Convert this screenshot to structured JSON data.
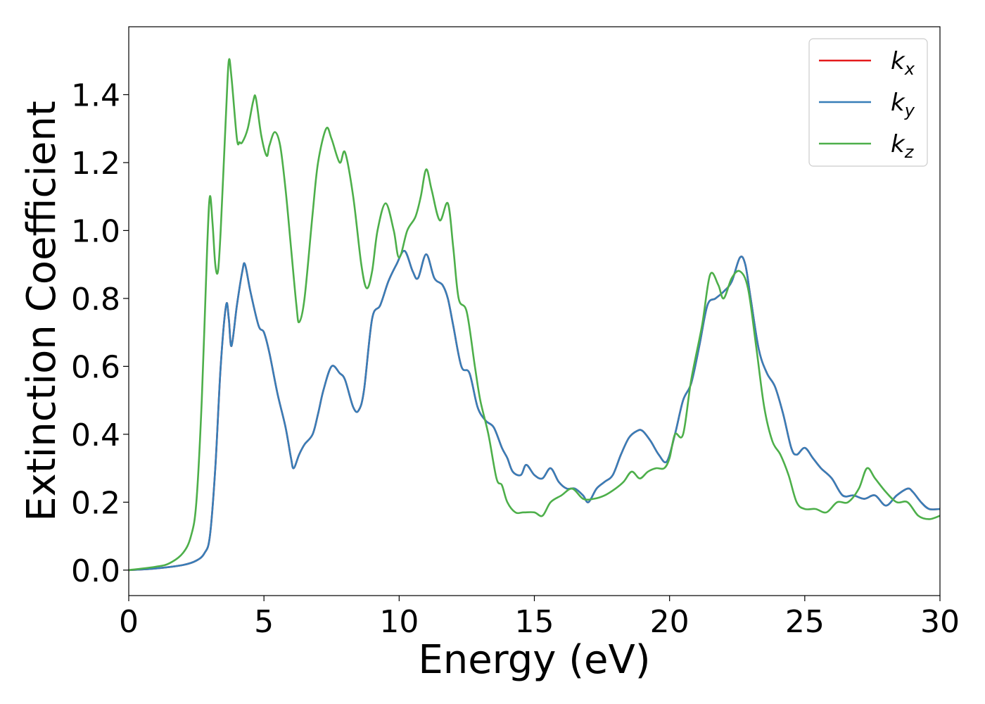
{
  "chart_data": {
    "type": "line",
    "title": "",
    "xlabel": "Energy (eV)",
    "ylabel": "Extinction Coefficient",
    "xlim": [
      0,
      30
    ],
    "ylim": [
      -0.075,
      1.6
    ],
    "xticks": [
      0,
      5,
      10,
      15,
      20,
      25,
      30
    ],
    "yticks": [
      0.0,
      0.2,
      0.4,
      0.6,
      0.8,
      1.0,
      1.2,
      1.4
    ],
    "ytick_labels": [
      "0.0",
      "0.2",
      "0.4",
      "0.6",
      "0.8",
      "1.0",
      "1.2",
      "1.4"
    ],
    "grid": false,
    "legend": {
      "placement": "top-right",
      "entries": [
        {
          "base": "k",
          "sub": "x",
          "color": "#e41a1c"
        },
        {
          "base": "k",
          "sub": "y",
          "color": "#377eb8"
        },
        {
          "base": "k",
          "sub": "z",
          "color": "#4daf4a"
        }
      ]
    },
    "series": [
      {
        "name": "kx",
        "color": "#e41a1c",
        "hidden_under": "ky",
        "x": [
          0,
          1,
          2,
          2.5,
          2.8,
          3.0,
          3.2,
          3.4,
          3.6,
          3.7,
          3.8,
          4.0,
          4.2,
          4.3,
          4.5,
          4.8,
          5.0,
          5.2,
          5.5,
          5.8,
          6.0,
          6.1,
          6.3,
          6.5,
          6.8,
          7.0,
          7.2,
          7.5,
          7.8,
          8.0,
          8.3,
          8.5,
          8.7,
          9.0,
          9.3,
          9.6,
          9.9,
          10.2,
          10.5,
          10.7,
          11.0,
          11.3,
          11.6,
          11.8,
          12.0,
          12.3,
          12.6,
          12.9,
          13.2,
          13.5,
          13.8,
          14.0,
          14.2,
          14.5,
          14.7,
          15.0,
          15.3,
          15.6,
          15.9,
          16.2,
          16.5,
          16.8,
          17.0,
          17.3,
          17.6,
          17.9,
          18.2,
          18.5,
          18.8,
          19.0,
          19.3,
          19.6,
          19.9,
          20.2,
          20.5,
          20.8,
          21.1,
          21.4,
          21.7,
          22.0,
          22.3,
          22.6,
          22.8,
          23.0,
          23.3,
          23.6,
          23.9,
          24.2,
          24.5,
          24.7,
          25.0,
          25.3,
          25.6,
          26.0,
          26.4,
          26.8,
          27.2,
          27.6,
          28.0,
          28.4,
          28.8,
          29.0,
          29.3,
          29.6,
          30.0
        ],
        "y": [
          0,
          0.005,
          0.015,
          0.028,
          0.05,
          0.1,
          0.3,
          0.6,
          0.78,
          0.74,
          0.66,
          0.78,
          0.88,
          0.9,
          0.82,
          0.72,
          0.7,
          0.64,
          0.52,
          0.42,
          0.33,
          0.3,
          0.34,
          0.37,
          0.4,
          0.46,
          0.53,
          0.6,
          0.58,
          0.56,
          0.48,
          0.47,
          0.53,
          0.74,
          0.78,
          0.85,
          0.9,
          0.94,
          0.88,
          0.86,
          0.93,
          0.86,
          0.84,
          0.8,
          0.72,
          0.6,
          0.58,
          0.48,
          0.44,
          0.42,
          0.36,
          0.33,
          0.29,
          0.28,
          0.31,
          0.28,
          0.27,
          0.3,
          0.26,
          0.24,
          0.24,
          0.22,
          0.2,
          0.24,
          0.26,
          0.28,
          0.34,
          0.39,
          0.41,
          0.41,
          0.38,
          0.34,
          0.32,
          0.4,
          0.5,
          0.55,
          0.66,
          0.78,
          0.8,
          0.82,
          0.85,
          0.92,
          0.9,
          0.8,
          0.65,
          0.58,
          0.54,
          0.46,
          0.36,
          0.34,
          0.36,
          0.33,
          0.3,
          0.27,
          0.22,
          0.22,
          0.21,
          0.22,
          0.19,
          0.22,
          0.24,
          0.23,
          0.2,
          0.18,
          0.18
        ]
      },
      {
        "name": "ky",
        "color": "#377eb8",
        "x": [
          0,
          1,
          2,
          2.5,
          2.8,
          3.0,
          3.2,
          3.4,
          3.6,
          3.7,
          3.8,
          4.0,
          4.2,
          4.3,
          4.5,
          4.8,
          5.0,
          5.2,
          5.5,
          5.8,
          6.0,
          6.1,
          6.3,
          6.5,
          6.8,
          7.0,
          7.2,
          7.5,
          7.8,
          8.0,
          8.3,
          8.5,
          8.7,
          9.0,
          9.3,
          9.6,
          9.9,
          10.2,
          10.5,
          10.7,
          11.0,
          11.3,
          11.6,
          11.8,
          12.0,
          12.3,
          12.6,
          12.9,
          13.2,
          13.5,
          13.8,
          14.0,
          14.2,
          14.5,
          14.7,
          15.0,
          15.3,
          15.6,
          15.9,
          16.2,
          16.5,
          16.8,
          17.0,
          17.3,
          17.6,
          17.9,
          18.2,
          18.5,
          18.8,
          19.0,
          19.3,
          19.6,
          19.9,
          20.2,
          20.5,
          20.8,
          21.1,
          21.4,
          21.7,
          22.0,
          22.3,
          22.6,
          22.8,
          23.0,
          23.3,
          23.6,
          23.9,
          24.2,
          24.5,
          24.7,
          25.0,
          25.3,
          25.6,
          26.0,
          26.4,
          26.8,
          27.2,
          27.6,
          28.0,
          28.4,
          28.8,
          29.0,
          29.3,
          29.6,
          30.0
        ],
        "y": [
          0,
          0.005,
          0.015,
          0.028,
          0.05,
          0.1,
          0.3,
          0.6,
          0.78,
          0.74,
          0.66,
          0.78,
          0.88,
          0.9,
          0.82,
          0.72,
          0.7,
          0.64,
          0.52,
          0.42,
          0.33,
          0.3,
          0.34,
          0.37,
          0.4,
          0.46,
          0.53,
          0.6,
          0.58,
          0.56,
          0.48,
          0.47,
          0.53,
          0.74,
          0.78,
          0.85,
          0.9,
          0.94,
          0.88,
          0.86,
          0.93,
          0.86,
          0.84,
          0.8,
          0.72,
          0.6,
          0.58,
          0.48,
          0.44,
          0.42,
          0.36,
          0.33,
          0.29,
          0.28,
          0.31,
          0.28,
          0.27,
          0.3,
          0.26,
          0.24,
          0.24,
          0.22,
          0.2,
          0.24,
          0.26,
          0.28,
          0.34,
          0.39,
          0.41,
          0.41,
          0.38,
          0.34,
          0.32,
          0.4,
          0.5,
          0.55,
          0.66,
          0.78,
          0.8,
          0.82,
          0.85,
          0.92,
          0.9,
          0.8,
          0.65,
          0.58,
          0.54,
          0.46,
          0.36,
          0.34,
          0.36,
          0.33,
          0.3,
          0.27,
          0.22,
          0.22,
          0.21,
          0.22,
          0.19,
          0.22,
          0.24,
          0.23,
          0.2,
          0.18,
          0.18
        ]
      },
      {
        "name": "kz",
        "color": "#4daf4a",
        "x": [
          0,
          1,
          1.5,
          2.0,
          2.3,
          2.5,
          2.7,
          2.9,
          3.0,
          3.1,
          3.2,
          3.3,
          3.4,
          3.6,
          3.7,
          3.8,
          4.0,
          4.1,
          4.2,
          4.4,
          4.6,
          4.7,
          4.9,
          5.1,
          5.2,
          5.4,
          5.6,
          5.8,
          6.0,
          6.2,
          6.3,
          6.5,
          6.8,
          7.0,
          7.3,
          7.5,
          7.8,
          8.0,
          8.3,
          8.6,
          8.8,
          9.0,
          9.2,
          9.5,
          9.8,
          10.0,
          10.3,
          10.6,
          10.8,
          11.0,
          11.2,
          11.5,
          11.8,
          12.0,
          12.2,
          12.5,
          12.8,
          13.0,
          13.3,
          13.6,
          13.8,
          14.0,
          14.3,
          14.6,
          15.0,
          15.3,
          15.6,
          16.0,
          16.4,
          16.8,
          17.2,
          17.6,
          18.0,
          18.3,
          18.6,
          18.9,
          19.2,
          19.5,
          19.8,
          20.0,
          20.2,
          20.5,
          20.8,
          21.2,
          21.5,
          21.8,
          22.0,
          22.3,
          22.6,
          22.9,
          23.2,
          23.5,
          23.8,
          24.1,
          24.4,
          24.7,
          25.0,
          25.4,
          25.8,
          26.2,
          26.6,
          27.0,
          27.3,
          27.6,
          28.0,
          28.4,
          28.8,
          29.2,
          29.6,
          30.0
        ],
        "y": [
          0,
          0.01,
          0.02,
          0.05,
          0.1,
          0.2,
          0.5,
          0.95,
          1.1,
          1.02,
          0.9,
          0.88,
          1.0,
          1.35,
          1.5,
          1.45,
          1.27,
          1.26,
          1.26,
          1.3,
          1.38,
          1.39,
          1.28,
          1.22,
          1.25,
          1.29,
          1.25,
          1.12,
          0.95,
          0.78,
          0.73,
          0.8,
          1.05,
          1.2,
          1.3,
          1.27,
          1.2,
          1.23,
          1.1,
          0.9,
          0.83,
          0.88,
          1.0,
          1.08,
          1.0,
          0.92,
          1.0,
          1.04,
          1.1,
          1.18,
          1.12,
          1.03,
          1.08,
          0.95,
          0.8,
          0.76,
          0.6,
          0.5,
          0.4,
          0.27,
          0.25,
          0.2,
          0.17,
          0.17,
          0.17,
          0.16,
          0.2,
          0.22,
          0.24,
          0.21,
          0.21,
          0.22,
          0.24,
          0.26,
          0.29,
          0.27,
          0.29,
          0.3,
          0.3,
          0.33,
          0.4,
          0.4,
          0.56,
          0.72,
          0.87,
          0.84,
          0.8,
          0.86,
          0.88,
          0.83,
          0.66,
          0.48,
          0.38,
          0.34,
          0.28,
          0.2,
          0.18,
          0.18,
          0.17,
          0.2,
          0.2,
          0.24,
          0.3,
          0.27,
          0.23,
          0.2,
          0.2,
          0.16,
          0.15,
          0.16
        ]
      }
    ]
  }
}
